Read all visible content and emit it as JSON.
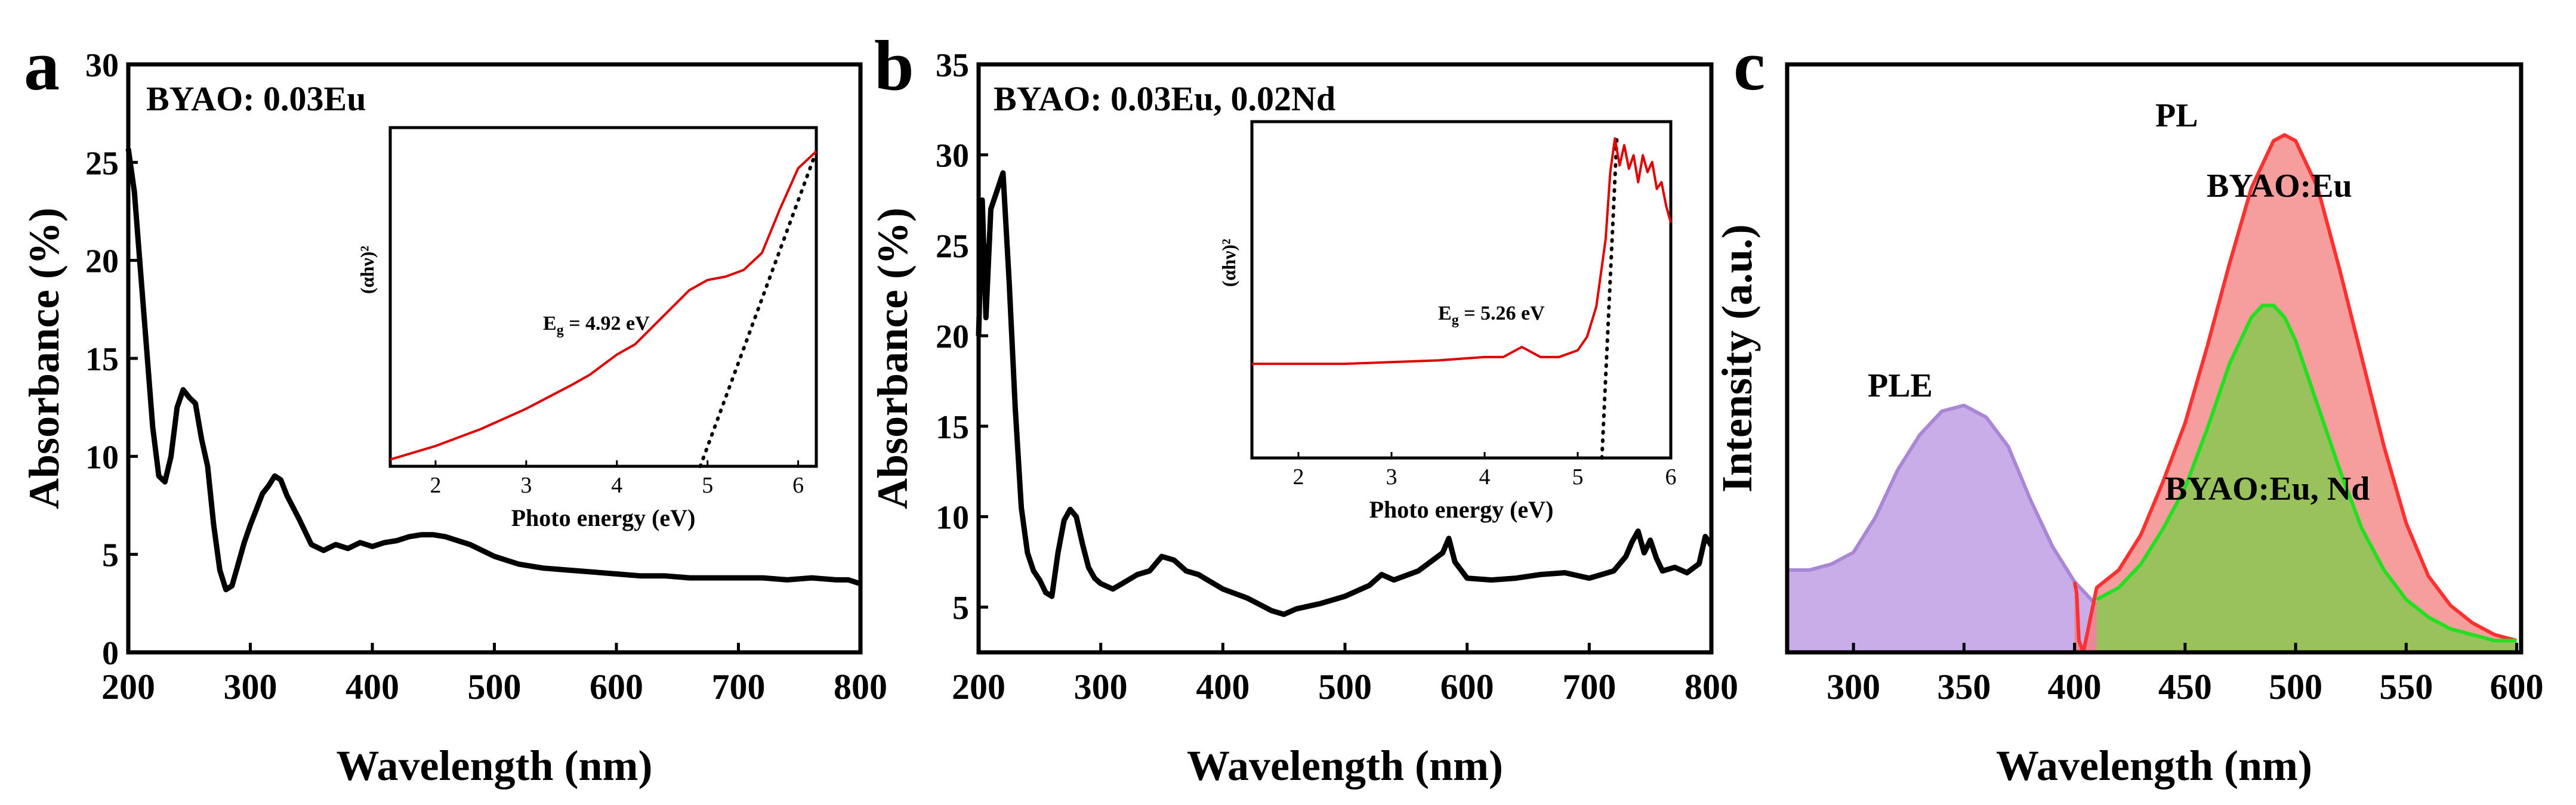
{
  "chart_data": [
    {
      "id": "a",
      "type": "line",
      "panel_label": "a",
      "annotation": "BYAO: 0.03Eu",
      "xlabel": "Wavelength (nm)",
      "ylabel": "Absorbance (%)",
      "xlim": [
        200,
        800
      ],
      "ylim": [
        0,
        30
      ],
      "xticks": [
        200,
        300,
        400,
        500,
        600,
        700,
        800
      ],
      "yticks": [
        0,
        5,
        10,
        15,
        20,
        25,
        30
      ],
      "series": [
        {
          "name": "Absorbance",
          "color": "#000000",
          "x": [
            200,
            205,
            210,
            215,
            220,
            225,
            230,
            235,
            240,
            245,
            250,
            255,
            260,
            265,
            270,
            275,
            280,
            285,
            290,
            295,
            300,
            305,
            310,
            315,
            320,
            325,
            330,
            335,
            340,
            350,
            360,
            370,
            380,
            390,
            400,
            410,
            420,
            430,
            440,
            450,
            460,
            470,
            480,
            490,
            500,
            520,
            540,
            560,
            580,
            600,
            620,
            640,
            660,
            680,
            700,
            720,
            740,
            760,
            780,
            790,
            800
          ],
          "y": [
            25.7,
            23.5,
            19.5,
            15.5,
            11.5,
            9.0,
            8.7,
            10.0,
            12.5,
            13.4,
            13.0,
            12.7,
            10.9,
            9.5,
            6.5,
            4.2,
            3.2,
            3.4,
            4.5,
            5.6,
            6.5,
            7.3,
            8.1,
            8.5,
            9.0,
            8.8,
            8.0,
            7.4,
            6.8,
            5.5,
            5.2,
            5.5,
            5.3,
            5.6,
            5.4,
            5.6,
            5.7,
            5.9,
            6.0,
            6.0,
            5.9,
            5.7,
            5.5,
            5.2,
            4.9,
            4.5,
            4.3,
            4.2,
            4.1,
            4.0,
            3.9,
            3.9,
            3.8,
            3.8,
            3.8,
            3.8,
            3.7,
            3.8,
            3.7,
            3.7,
            3.5
          ]
        }
      ],
      "inset": {
        "xlabel": "Photo energy (eV)",
        "ylabel": "(αhν)²",
        "xlim": [
          1.5,
          6.2
        ],
        "xticks": [
          2,
          3,
          4,
          5,
          6
        ],
        "ylim": [
          0,
          1
        ],
        "annotation_prefix": "E",
        "annotation_sub": "g",
        "annotation_suffix": " = 4.92 eV",
        "curve": {
          "color": "#e00000",
          "x": [
            1.5,
            2.0,
            2.5,
            3.0,
            3.5,
            3.7,
            4.0,
            4.2,
            4.5,
            4.8,
            5.0,
            5.2,
            5.4,
            5.6,
            5.8,
            6.0,
            6.2
          ],
          "y": [
            0.02,
            0.06,
            0.11,
            0.17,
            0.24,
            0.27,
            0.33,
            0.36,
            0.44,
            0.52,
            0.55,
            0.56,
            0.58,
            0.63,
            0.76,
            0.88,
            0.93
          ]
        },
        "tangent": {
          "x": [
            4.92,
            6.2
          ],
          "y": [
            0.0,
            0.93
          ]
        }
      }
    },
    {
      "id": "b",
      "type": "line",
      "panel_label": "b",
      "annotation": "BYAO: 0.03Eu, 0.02Nd",
      "xlabel": "Wavelength (nm)",
      "ylabel": "Absorbance (%)",
      "xlim": [
        200,
        800
      ],
      "ylim": [
        2.5,
        35
      ],
      "xticks": [
        200,
        300,
        400,
        500,
        600,
        700,
        800
      ],
      "yticks": [
        5,
        10,
        15,
        20,
        25,
        30,
        35
      ],
      "series": [
        {
          "name": "Absorbance",
          "color": "#000000",
          "x": [
            200,
            203,
            206,
            210,
            215,
            220,
            225,
            230,
            235,
            240,
            245,
            250,
            255,
            260,
            265,
            270,
            275,
            280,
            285,
            290,
            295,
            300,
            310,
            320,
            330,
            340,
            350,
            360,
            370,
            380,
            390,
            400,
            420,
            440,
            450,
            460,
            480,
            500,
            520,
            530,
            540,
            560,
            580,
            585,
            590,
            600,
            620,
            640,
            660,
            680,
            700,
            720,
            730,
            735,
            740,
            745,
            750,
            755,
            760,
            770,
            780,
            790,
            795,
            800
          ],
          "y": [
            20.0,
            27.5,
            21.0,
            27.0,
            28.0,
            29.0,
            23.0,
            16.0,
            10.5,
            8.0,
            7.0,
            6.5,
            5.8,
            5.6,
            8.0,
            9.8,
            10.4,
            10.0,
            8.5,
            7.2,
            6.6,
            6.3,
            6.0,
            6.4,
            6.8,
            7.0,
            7.8,
            7.6,
            7.0,
            6.8,
            6.4,
            6.0,
            5.5,
            4.8,
            4.6,
            4.9,
            5.2,
            5.6,
            6.2,
            6.8,
            6.5,
            7.0,
            8.0,
            8.8,
            7.5,
            6.6,
            6.5,
            6.6,
            6.8,
            6.9,
            6.6,
            7.0,
            7.8,
            8.6,
            9.2,
            8.0,
            8.7,
            7.7,
            7.0,
            7.2,
            6.9,
            7.4,
            8.9,
            8.4
          ]
        }
      ],
      "inset": {
        "xlabel": "Photo energy (eV)",
        "ylabel": "(αhν)²",
        "xlim": [
          1.5,
          6.0
        ],
        "xticks": [
          2,
          3,
          4,
          5,
          6
        ],
        "ylim": [
          0,
          1
        ],
        "annotation_prefix": "E",
        "annotation_sub": "g",
        "annotation_suffix": " = 5.26 eV",
        "curve": {
          "color": "#e00000",
          "x": [
            1.5,
            2.0,
            2.5,
            3.0,
            3.5,
            4.0,
            4.2,
            4.4,
            4.6,
            4.8,
            5.0,
            5.1,
            5.2,
            5.3,
            5.35,
            5.4,
            5.45,
            5.5,
            5.55,
            5.6,
            5.65,
            5.7,
            5.75,
            5.8,
            5.85,
            5.9,
            5.95,
            6.0
          ],
          "y": [
            0.28,
            0.28,
            0.28,
            0.285,
            0.29,
            0.3,
            0.3,
            0.33,
            0.3,
            0.3,
            0.32,
            0.36,
            0.45,
            0.65,
            0.85,
            0.95,
            0.87,
            0.93,
            0.86,
            0.9,
            0.82,
            0.9,
            0.85,
            0.88,
            0.8,
            0.82,
            0.75,
            0.7
          ]
        },
        "tangent": {
          "x": [
            5.26,
            5.42
          ],
          "y": [
            0.0,
            0.95
          ]
        }
      }
    },
    {
      "id": "c",
      "type": "area",
      "panel_label": "c",
      "xlabel": "Wavelength (nm)",
      "ylabel": "Intensity (a.u.)",
      "xlim": [
        270,
        602
      ],
      "ylim": [
        0,
        1
      ],
      "xticks": [
        300,
        350,
        400,
        450,
        500,
        550,
        600
      ],
      "yticks": [],
      "labels": {
        "pl": "PL",
        "ple": "PLE",
        "eu": "BYAO:Eu",
        "eund": "BYAO:Eu, Nd"
      },
      "series": [
        {
          "name": "PLE",
          "fill": "#b48ee0",
          "stroke": "#a987d6",
          "x": [
            270,
            280,
            290,
            300,
            310,
            320,
            330,
            340,
            350,
            360,
            370,
            380,
            390,
            400,
            410
          ],
          "y": [
            0.14,
            0.14,
            0.15,
            0.17,
            0.23,
            0.31,
            0.37,
            0.41,
            0.42,
            0.4,
            0.35,
            0.26,
            0.18,
            0.12,
            0.08
          ]
        },
        {
          "name": "BYAO:Eu",
          "fill": "#f27878",
          "stroke": "#ff3030",
          "x": [
            400,
            401,
            402,
            404,
            410,
            420,
            430,
            440,
            450,
            460,
            470,
            480,
            490,
            495,
            500,
            510,
            520,
            530,
            540,
            550,
            560,
            570,
            580,
            590,
            600
          ],
          "y": [
            0.12,
            0.1,
            0.02,
            0.0,
            0.11,
            0.14,
            0.2,
            0.29,
            0.39,
            0.52,
            0.66,
            0.79,
            0.87,
            0.88,
            0.87,
            0.79,
            0.65,
            0.5,
            0.35,
            0.22,
            0.13,
            0.08,
            0.05,
            0.03,
            0.02
          ]
        },
        {
          "name": "BYAO:Eu, Nd",
          "fill": "#88c850",
          "stroke": "#20e020",
          "x": [
            410,
            420,
            430,
            440,
            450,
            460,
            470,
            480,
            485,
            490,
            495,
            500,
            510,
            520,
            530,
            540,
            550,
            560,
            570,
            580,
            590,
            600
          ],
          "y": [
            0.09,
            0.11,
            0.15,
            0.21,
            0.28,
            0.38,
            0.49,
            0.57,
            0.59,
            0.59,
            0.57,
            0.53,
            0.42,
            0.31,
            0.21,
            0.14,
            0.09,
            0.06,
            0.04,
            0.03,
            0.02,
            0.02
          ]
        }
      ]
    }
  ]
}
